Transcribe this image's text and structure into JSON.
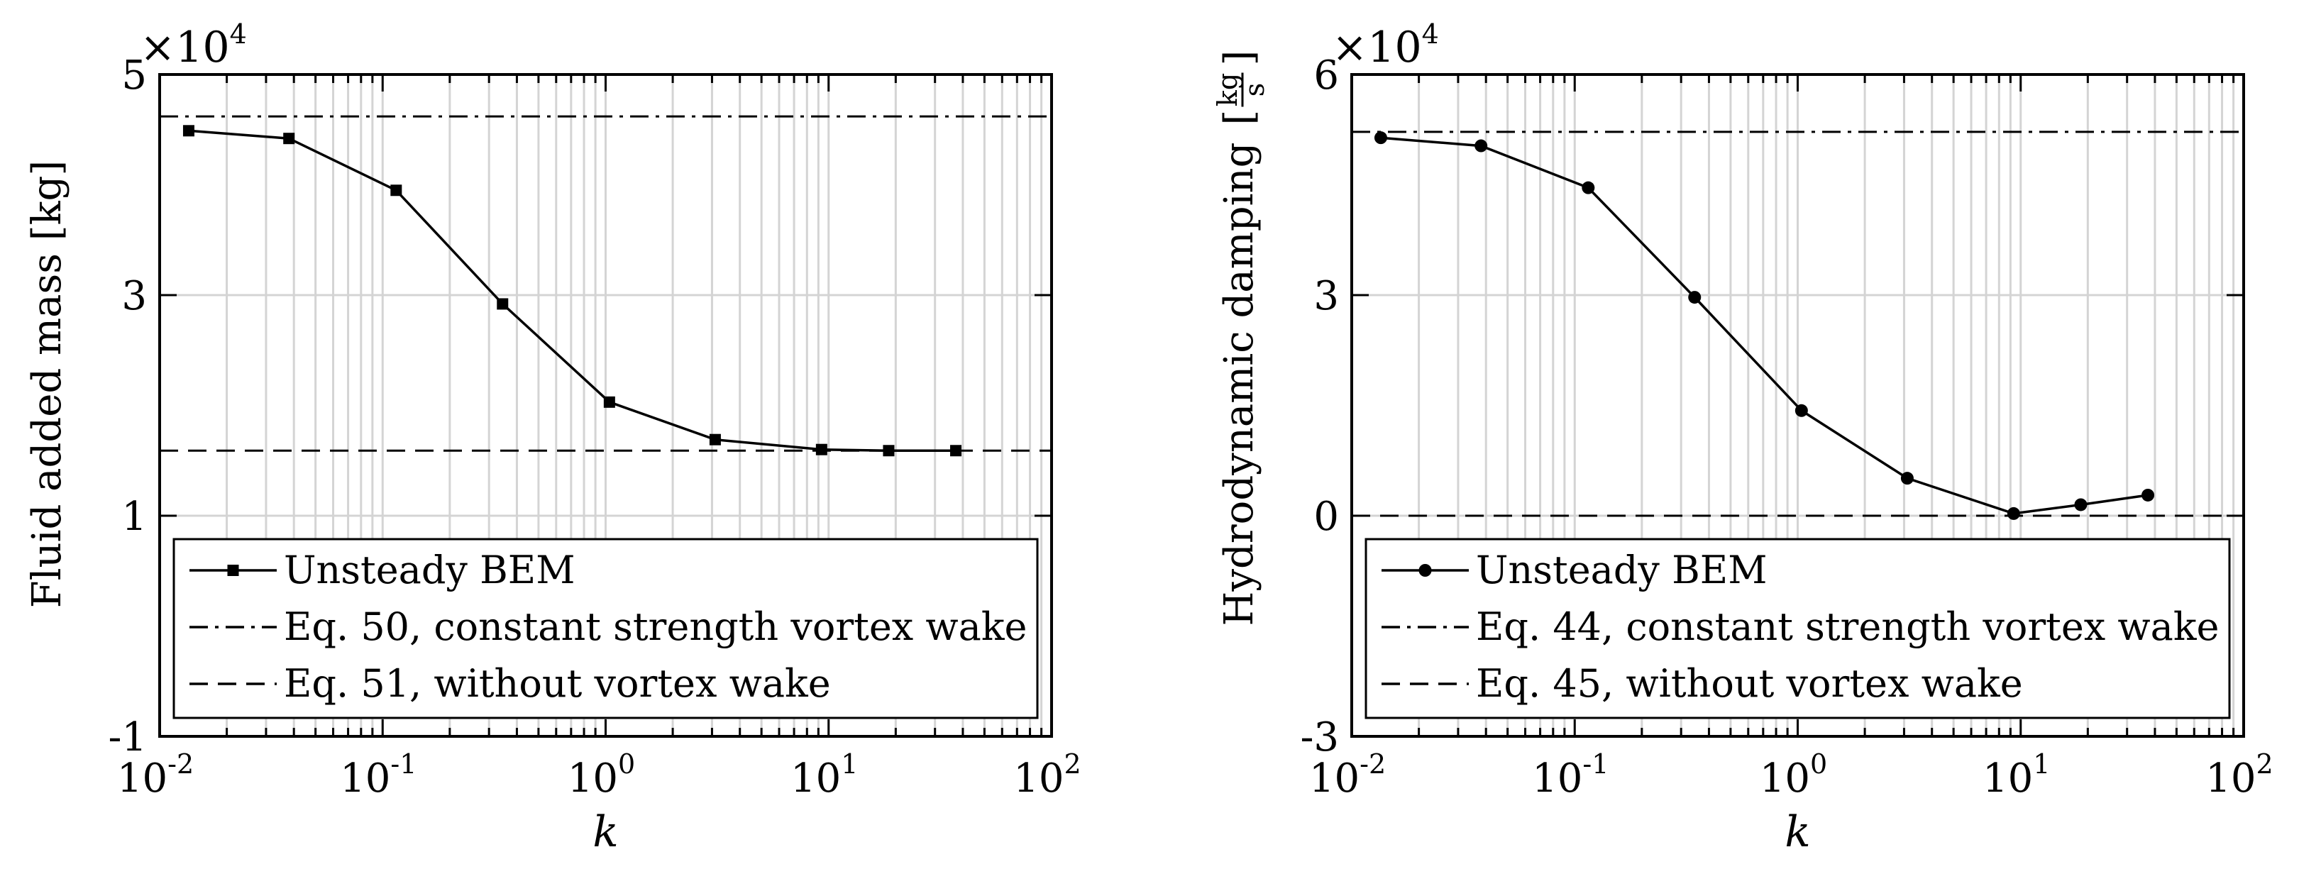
{
  "chart_data": [
    {
      "type": "line",
      "xscale": "log",
      "xlim": [
        0.01,
        100
      ],
      "ylim": [
        -1,
        5
      ],
      "yticks": [
        -1,
        1,
        3,
        5
      ],
      "ytick_labels": [
        "-1",
        "1",
        "3",
        "5"
      ],
      "xtick_labels": [
        {
          "base": "10",
          "exp": "-2"
        },
        {
          "base": "10",
          "exp": "-1"
        },
        {
          "base": "10",
          "exp": "0"
        },
        {
          "base": "10",
          "exp": "1"
        },
        {
          "base": "10",
          "exp": "2"
        }
      ],
      "multiplier": {
        "base": "×10",
        "exp": "4"
      },
      "xlabel": "k",
      "ylabel": "Fluid added mass [kg]",
      "grid": "minor-and-major",
      "legend": "bottom-inside",
      "series": [
        {
          "name": "Unsteady BEM",
          "style": "solid",
          "marker": "square",
          "x": [
            0.0135,
            0.038,
            0.115,
            0.345,
            1.04,
            3.1,
            9.3,
            18.6,
            37.2
          ],
          "y": [
            4.49,
            4.42,
            3.95,
            2.92,
            2.03,
            1.69,
            1.6,
            1.59,
            1.59
          ]
        },
        {
          "name": "Eq. 50, constant strength vortex wake",
          "style": "dashdot",
          "constant": 4.62
        },
        {
          "name": "Eq. 51, without vortex wake",
          "style": "dashed",
          "constant": 1.59
        }
      ]
    },
    {
      "type": "line",
      "xscale": "log",
      "xlim": [
        0.01,
        100
      ],
      "ylim": [
        -3,
        6
      ],
      "yticks": [
        -3,
        0,
        3,
        6
      ],
      "ytick_labels": [
        "-3",
        "0",
        "3",
        "6"
      ],
      "xtick_labels": [
        {
          "base": "10",
          "exp": "-2"
        },
        {
          "base": "10",
          "exp": "-1"
        },
        {
          "base": "10",
          "exp": "0"
        },
        {
          "base": "10",
          "exp": "1"
        },
        {
          "base": "10",
          "exp": "2"
        }
      ],
      "multiplier": {
        "base": "×10",
        "exp": "4"
      },
      "xlabel": "k",
      "ylabel": "Hydrodynamic damping",
      "ylabel_unit": {
        "num": "kg",
        "den": "s"
      },
      "grid": "minor-and-major",
      "legend": "bottom-inside",
      "series": [
        {
          "name": "Unsteady BEM",
          "style": "solid",
          "marker": "circle",
          "x": [
            0.0135,
            0.038,
            0.115,
            0.345,
            1.04,
            3.1,
            9.3,
            18.6,
            37.2
          ],
          "y": [
            5.14,
            5.03,
            4.46,
            2.97,
            1.43,
            0.51,
            0.03,
            0.15,
            0.28
          ]
        },
        {
          "name": "Eq. 44, constant strength vortex wake",
          "style": "dashdot",
          "constant": 5.22
        },
        {
          "name": "Eq. 45, without vortex wake",
          "style": "dashed",
          "constant": 0.0
        }
      ]
    }
  ]
}
